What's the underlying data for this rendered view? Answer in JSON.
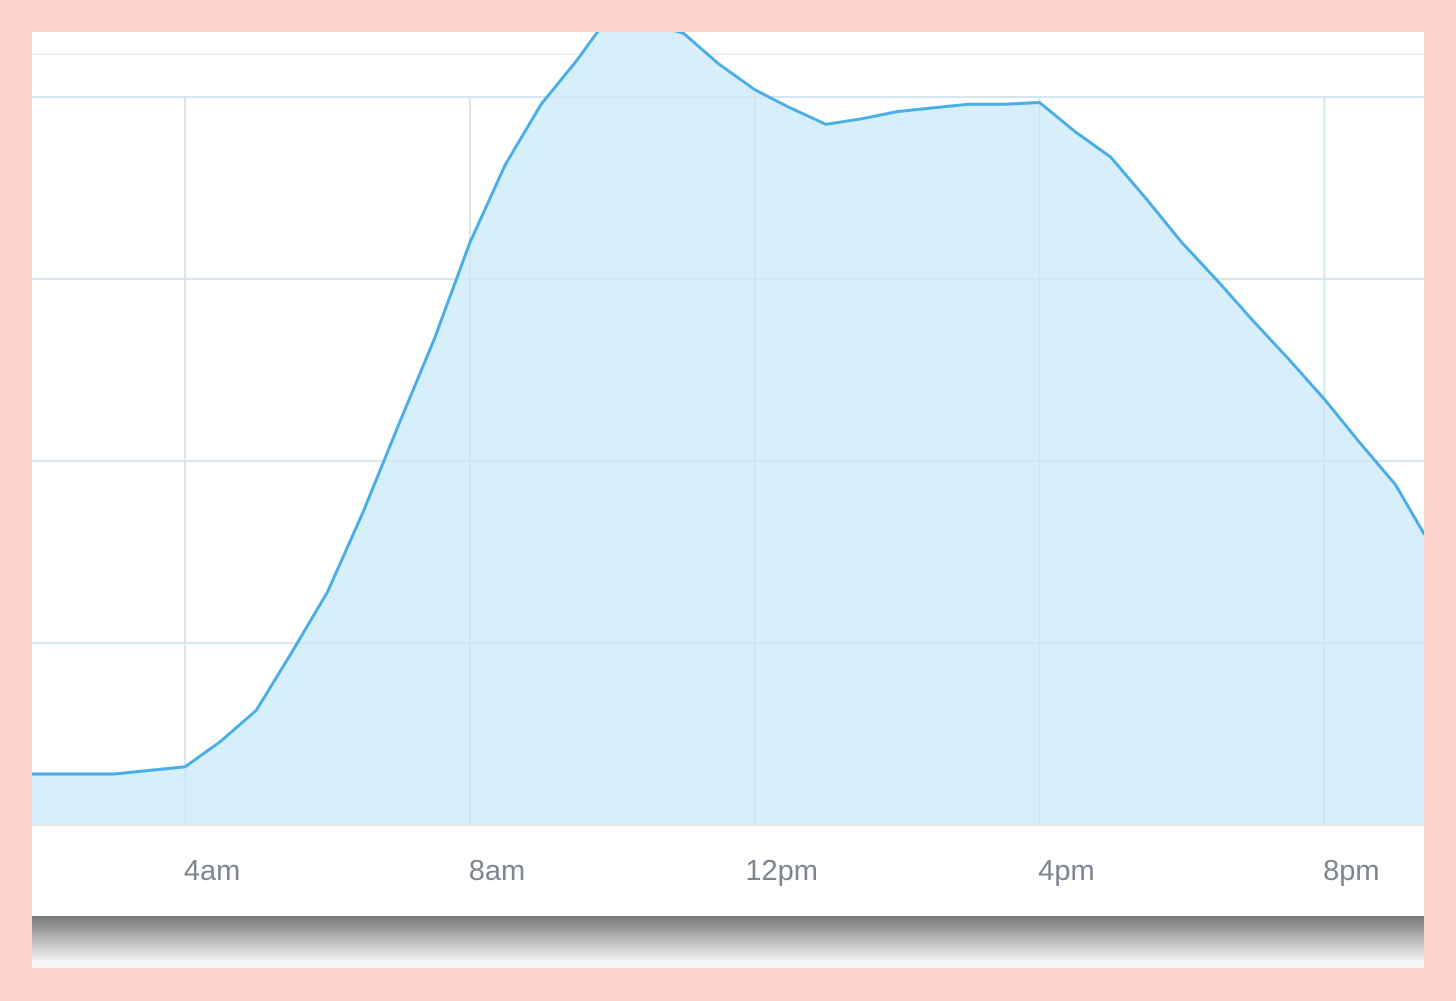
{
  "chart_data": {
    "type": "area",
    "title": "",
    "xlabel": "",
    "ylabel": "",
    "x_tick_labels": [
      "4am",
      "8am",
      "12pm",
      "4pm",
      "8pm"
    ],
    "x_tick_hours": [
      4,
      8,
      12,
      16,
      20
    ],
    "xlim": [
      1.85,
      21.4
    ],
    "ylim": [
      0,
      4
    ],
    "y_gridlines": [
      1,
      2,
      3,
      4
    ],
    "grid": true,
    "legend": "none",
    "series": [
      {
        "x": [
          1.85,
          2.5,
          3.0,
          3.5,
          4.0,
          4.5,
          5.0,
          5.5,
          6.0,
          6.5,
          7.0,
          7.5,
          8.0,
          8.5,
          9.0,
          9.5,
          10.0,
          10.5,
          11.0,
          11.5,
          12.0,
          12.5,
          13.0,
          13.5,
          14.0,
          14.5,
          15.0,
          15.5,
          16.0,
          16.5,
          17.0,
          17.5,
          18.0,
          18.5,
          19.0,
          19.5,
          20.0,
          20.5,
          21.0,
          21.4
        ],
        "values": [
          0.28,
          0.28,
          0.28,
          0.3,
          0.32,
          0.46,
          0.63,
          0.95,
          1.28,
          1.72,
          2.2,
          2.67,
          3.2,
          3.63,
          3.96,
          4.2,
          4.47,
          4.41,
          4.35,
          4.18,
          4.04,
          3.94,
          3.85,
          3.88,
          3.92,
          3.94,
          3.96,
          3.96,
          3.97,
          3.81,
          3.67,
          3.44,
          3.2,
          2.99,
          2.77,
          2.56,
          2.34,
          2.1,
          1.87,
          1.6
        ]
      }
    ],
    "colors": {
      "line": "#4aaee6",
      "fill": "#d7eefb",
      "grid": "#eceff3",
      "axis_text": "#7e8591"
    }
  }
}
